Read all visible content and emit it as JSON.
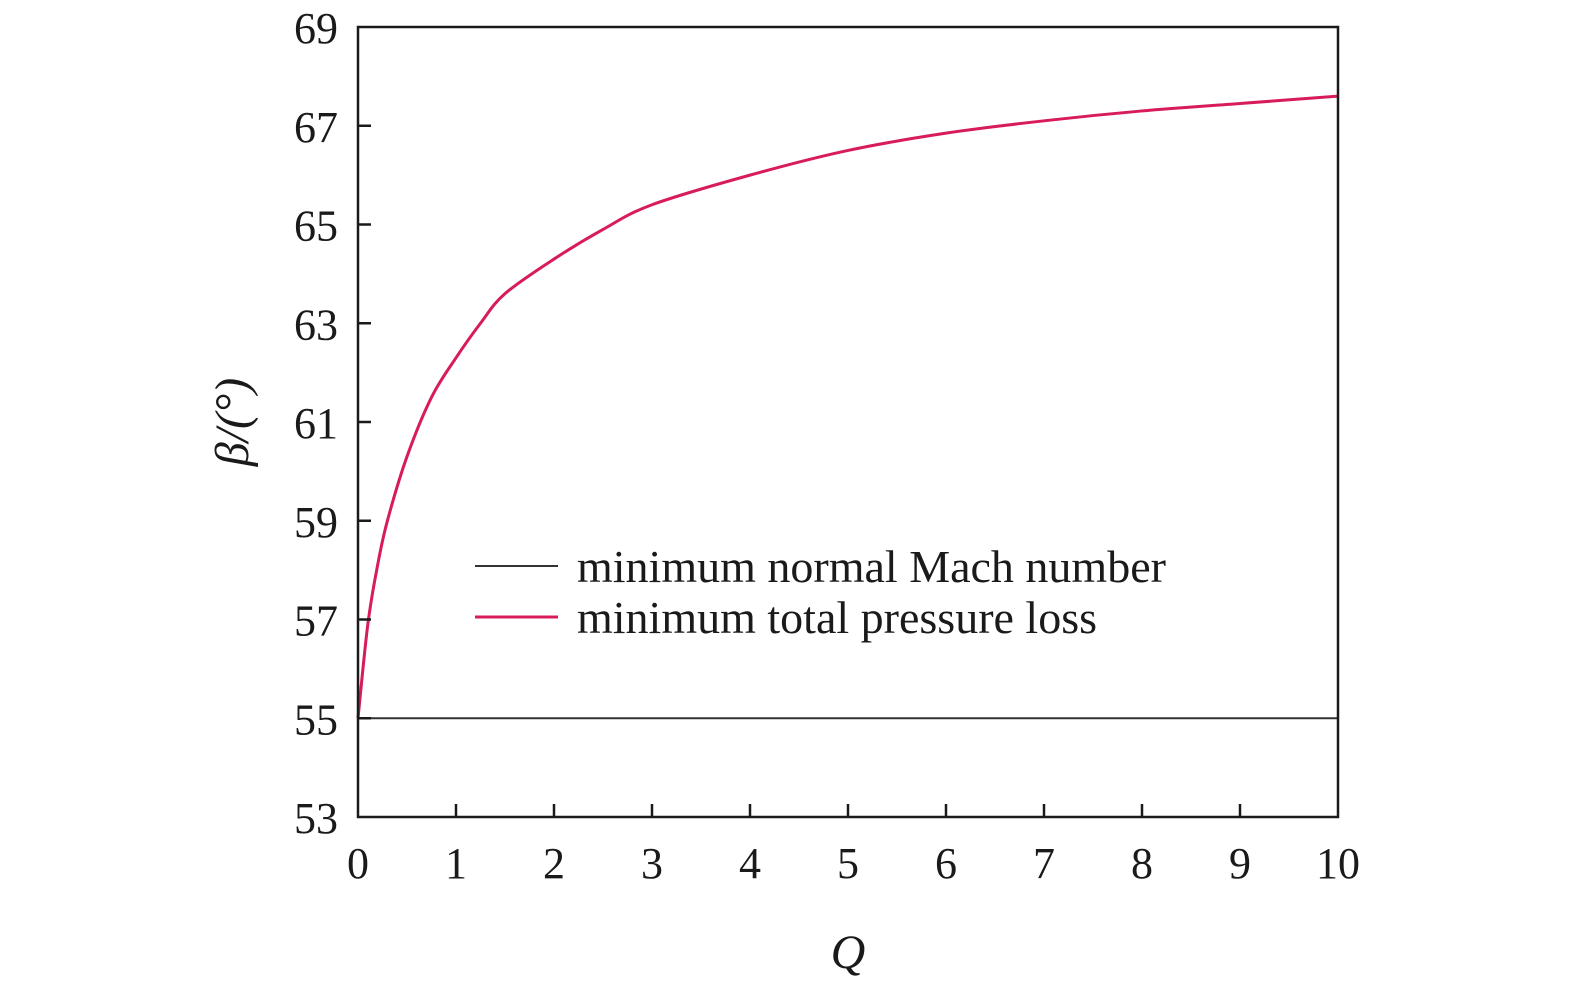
{
  "chart_data": {
    "type": "line",
    "title": "",
    "xlabel": "Q",
    "ylabel": "β/(°)",
    "xlim": [
      0,
      10
    ],
    "ylim": [
      53,
      69
    ],
    "xticks": [
      0,
      1,
      2,
      3,
      4,
      5,
      6,
      7,
      8,
      9,
      10
    ],
    "yticks": [
      53,
      55,
      57,
      59,
      61,
      63,
      65,
      67,
      69
    ],
    "grid": false,
    "legend_position": "center-right",
    "series": [
      {
        "name": "minimum normal Mach number",
        "color": "#333333",
        "x": [
          0,
          10
        ],
        "y": [
          55,
          55
        ]
      },
      {
        "name": "minimum total pressure loss",
        "color": "#d81b5c",
        "x": [
          0,
          0.1,
          0.2,
          0.3,
          0.5,
          0.75,
          1,
          1.25,
          1.5,
          2,
          2.5,
          3,
          4,
          5,
          6,
          7,
          8,
          9,
          10
        ],
        "y": [
          55,
          56.9,
          58.1,
          59.0,
          60.3,
          61.5,
          62.3,
          63.0,
          63.6,
          64.3,
          64.9,
          65.4,
          66.0,
          66.5,
          66.85,
          67.1,
          67.3,
          67.45,
          67.6
        ]
      }
    ]
  }
}
